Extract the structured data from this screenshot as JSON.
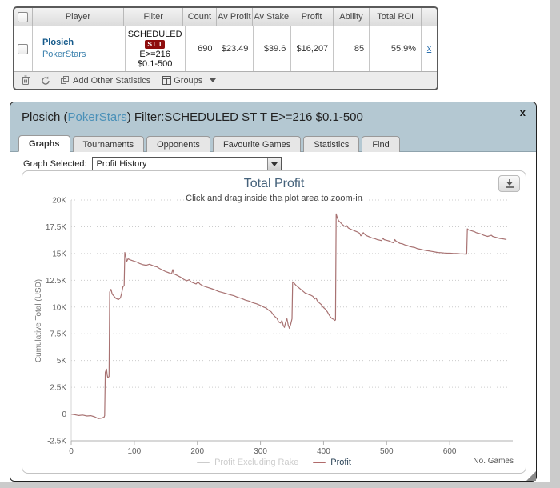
{
  "results_table": {
    "columns": [
      "",
      "Player",
      "Filter",
      "Count",
      "Av Profit",
      "Av Stake",
      "Profit",
      "Ability",
      "Total ROI",
      ""
    ],
    "row": {
      "player_name": "Plosich",
      "player_site": "PokerStars",
      "filter_line1": "SCHEDULED",
      "filter_badge": "ST T",
      "filter_line2": "E>=216",
      "filter_line3": "$0.1-500",
      "count": "690",
      "av_profit": "$23.49",
      "av_stake": "$39.6",
      "profit": "$16,207",
      "ability": "85",
      "total_roi": "55.9%",
      "remove_label": "x"
    },
    "toolbar": {
      "add_other_statistics": "Add Other Statistics",
      "groups": "Groups"
    }
  },
  "dialog": {
    "title_prefix": "Plosich (",
    "title_site": "PokerStars",
    "title_suffix": ") Filter:SCHEDULED ST T E>=216 $0.1-500",
    "close_label": "x",
    "tabs": [
      {
        "label": "Graphs",
        "active": true
      },
      {
        "label": "Tournaments",
        "active": false
      },
      {
        "label": "Opponents",
        "active": false
      },
      {
        "label": "Favourite Games",
        "active": false
      },
      {
        "label": "Statistics",
        "active": false
      },
      {
        "label": "Find",
        "active": false
      }
    ],
    "graph_select": {
      "label": "Graph Selected:",
      "value": "Profit History"
    }
  },
  "chart_data": {
    "type": "line",
    "title": "Total Profit",
    "subtitle": "Click and drag inside the plot area to zoom-in",
    "ylabel": "Cumulative Total (USD)",
    "xlabel": "No. Games",
    "xlim": [
      0,
      700
    ],
    "ylim": [
      -2500,
      20000
    ],
    "grid": true,
    "legend_position": "bottom-center",
    "yticks": [
      20000,
      17500,
      15000,
      12500,
      10000,
      7500,
      5000,
      2500,
      0,
      -2500
    ],
    "ytick_labels": [
      "20K",
      "17.5K",
      "15K",
      "12.5K",
      "10K",
      "7.5K",
      "5K",
      "2.5K",
      "0",
      "-2.5K"
    ],
    "xticks": [
      0,
      100,
      200,
      300,
      400,
      500,
      600
    ],
    "xtick_labels": [
      "0",
      "100",
      "200",
      "300",
      "400",
      "500",
      "600"
    ],
    "legend": [
      {
        "name": "Profit Excluding Rake",
        "color": "#cccccc",
        "text_color": "#cccccc",
        "enabled": false
      },
      {
        "name": "Profit",
        "color": "#b06a6a",
        "text_color": "#2c4458",
        "enabled": true
      }
    ],
    "series": [
      {
        "name": "Profit",
        "color": "#a87272",
        "points": [
          [
            0,
            0
          ],
          [
            6,
            -60
          ],
          [
            12,
            -140
          ],
          [
            18,
            -90
          ],
          [
            25,
            -180
          ],
          [
            31,
            -150
          ],
          [
            37,
            -260
          ],
          [
            43,
            -430
          ],
          [
            48,
            -380
          ],
          [
            52,
            -300
          ],
          [
            53,
            -150
          ],
          [
            54,
            3900
          ],
          [
            56,
            4200
          ],
          [
            57,
            3700
          ],
          [
            58,
            3400
          ],
          [
            60,
            3500
          ],
          [
            61,
            11400
          ],
          [
            63,
            11650
          ],
          [
            65,
            11200
          ],
          [
            68,
            11000
          ],
          [
            71,
            10800
          ],
          [
            75,
            10700
          ],
          [
            78,
            10850
          ],
          [
            80,
            11300
          ],
          [
            82,
            11900
          ],
          [
            84,
            12000
          ],
          [
            85,
            15100
          ],
          [
            87,
            14600
          ],
          [
            88,
            14250
          ],
          [
            90,
            14500
          ],
          [
            94,
            14400
          ],
          [
            99,
            14300
          ],
          [
            104,
            14200
          ],
          [
            109,
            14050
          ],
          [
            114,
            13950
          ],
          [
            119,
            13900
          ],
          [
            124,
            14000
          ],
          [
            128,
            13900
          ],
          [
            132,
            13800
          ],
          [
            136,
            13750
          ],
          [
            140,
            13600
          ],
          [
            145,
            13450
          ],
          [
            150,
            13300
          ],
          [
            155,
            13200
          ],
          [
            159,
            13100
          ],
          [
            161,
            13500
          ],
          [
            163,
            13100
          ],
          [
            168,
            12950
          ],
          [
            173,
            12800
          ],
          [
            178,
            12600
          ],
          [
            183,
            12450
          ],
          [
            187,
            12550
          ],
          [
            190,
            12350
          ],
          [
            194,
            12250
          ],
          [
            198,
            12150
          ],
          [
            201,
            12350
          ],
          [
            204,
            12150
          ],
          [
            208,
            12000
          ],
          [
            213,
            11900
          ],
          [
            218,
            11800
          ],
          [
            223,
            11700
          ],
          [
            228,
            11600
          ],
          [
            234,
            11450
          ],
          [
            240,
            11350
          ],
          [
            246,
            11250
          ],
          [
            252,
            11150
          ],
          [
            258,
            11050
          ],
          [
            264,
            10900
          ],
          [
            270,
            10800
          ],
          [
            276,
            10650
          ],
          [
            282,
            10550
          ],
          [
            288,
            10400
          ],
          [
            294,
            10300
          ],
          [
            300,
            10150
          ],
          [
            305,
            10000
          ],
          [
            309,
            9900
          ],
          [
            313,
            9700
          ],
          [
            317,
            9550
          ],
          [
            320,
            9300
          ],
          [
            323,
            9100
          ],
          [
            326,
            8950
          ],
          [
            329,
            8600
          ],
          [
            332,
            8500
          ],
          [
            334,
            8750
          ],
          [
            336,
            8300
          ],
          [
            338,
            8100
          ],
          [
            340,
            8600
          ],
          [
            342,
            8900
          ],
          [
            344,
            8300
          ],
          [
            346,
            8000
          ],
          [
            348,
            8400
          ],
          [
            350,
            8900
          ],
          [
            351,
            12350
          ],
          [
            353,
            12250
          ],
          [
            356,
            12050
          ],
          [
            359,
            11900
          ],
          [
            362,
            11750
          ],
          [
            365,
            11600
          ],
          [
            368,
            11450
          ],
          [
            371,
            11300
          ],
          [
            374,
            11250
          ],
          [
            377,
            11150
          ],
          [
            380,
            11100
          ],
          [
            383,
            11000
          ],
          [
            386,
            10750
          ],
          [
            388,
            10850
          ],
          [
            390,
            10600
          ],
          [
            393,
            10400
          ],
          [
            396,
            10250
          ],
          [
            398,
            10100
          ],
          [
            400,
            9950
          ],
          [
            402,
            9850
          ],
          [
            404,
            9700
          ],
          [
            406,
            9550
          ],
          [
            408,
            9350
          ],
          [
            410,
            9150
          ],
          [
            412,
            9000
          ],
          [
            414,
            8900
          ],
          [
            416,
            8850
          ],
          [
            418,
            8750
          ],
          [
            419,
            8800
          ],
          [
            420,
            18700
          ],
          [
            422,
            18300
          ],
          [
            424,
            18050
          ],
          [
            426,
            17950
          ],
          [
            429,
            17750
          ],
          [
            432,
            17600
          ],
          [
            435,
            17500
          ],
          [
            437,
            17600
          ],
          [
            439,
            17400
          ],
          [
            442,
            17300
          ],
          [
            446,
            17200
          ],
          [
            450,
            17100
          ],
          [
            454,
            17000
          ],
          [
            457,
            16900
          ],
          [
            459,
            16650
          ],
          [
            461,
            16750
          ],
          [
            463,
            16950
          ],
          [
            466,
            16750
          ],
          [
            469,
            16650
          ],
          [
            473,
            16550
          ],
          [
            477,
            16450
          ],
          [
            481,
            16400
          ],
          [
            485,
            16300
          ],
          [
            489,
            16250
          ],
          [
            492,
            16200
          ],
          [
            494,
            16450
          ],
          [
            496,
            16300
          ],
          [
            499,
            16250
          ],
          [
            502,
            16200
          ],
          [
            505,
            16150
          ],
          [
            508,
            16050
          ],
          [
            511,
            16000
          ],
          [
            513,
            16300
          ],
          [
            515,
            16150
          ],
          [
            518,
            16050
          ],
          [
            521,
            15950
          ],
          [
            525,
            15900
          ],
          [
            529,
            15800
          ],
          [
            533,
            15750
          ],
          [
            537,
            15650
          ],
          [
            541,
            15600
          ],
          [
            545,
            15550
          ],
          [
            549,
            15450
          ],
          [
            553,
            15400
          ],
          [
            557,
            15350
          ],
          [
            561,
            15300
          ],
          [
            566,
            15250
          ],
          [
            571,
            15200
          ],
          [
            576,
            15150
          ],
          [
            581,
            15100
          ],
          [
            586,
            15080
          ],
          [
            591,
            15050
          ],
          [
            596,
            15030
          ],
          [
            601,
            15030
          ],
          [
            606,
            15000
          ],
          [
            611,
            15000
          ],
          [
            616,
            14980
          ],
          [
            621,
            14960
          ],
          [
            625,
            14950
          ],
          [
            627,
            14950
          ],
          [
            628,
            17300
          ],
          [
            630,
            17200
          ],
          [
            633,
            17150
          ],
          [
            636,
            17100
          ],
          [
            639,
            17050
          ],
          [
            642,
            16950
          ],
          [
            645,
            16900
          ],
          [
            648,
            16850
          ],
          [
            651,
            16800
          ],
          [
            654,
            16700
          ],
          [
            657,
            16650
          ],
          [
            660,
            16600
          ],
          [
            663,
            16650
          ],
          [
            666,
            16700
          ],
          [
            668,
            16600
          ],
          [
            671,
            16550
          ],
          [
            674,
            16500
          ],
          [
            677,
            16450
          ],
          [
            680,
            16400
          ],
          [
            683,
            16380
          ],
          [
            686,
            16350
          ],
          [
            690,
            16300
          ]
        ]
      }
    ]
  }
}
